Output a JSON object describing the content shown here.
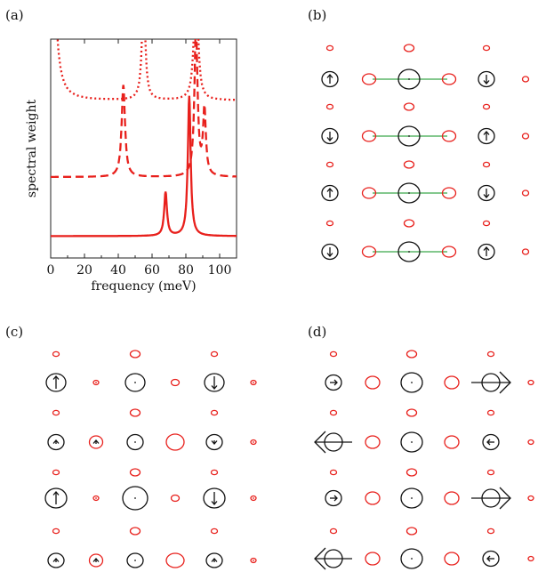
{
  "panels": {
    "a": {
      "label": "(a)"
    },
    "b": {
      "label": "(b)"
    },
    "c": {
      "label": "(c)"
    },
    "d": {
      "label": "(d)"
    }
  },
  "chart_data": {
    "type": "line",
    "title": "",
    "xlabel": "frequency (meV)",
    "ylabel": "spectral weight",
    "xlim": [
      0,
      110
    ],
    "x_ticks": [
      "0",
      "20",
      "40",
      "60",
      "80",
      "100"
    ],
    "y_ticks": [],
    "grid": false,
    "legend": "none",
    "series": [
      {
        "style": "dotted",
        "color": "#e8201c",
        "offset": 0.72,
        "baseline": 0.14,
        "peaks": [
          {
            "x": 0,
            "h": 1.4,
            "w": 2.0
          },
          {
            "x": 55,
            "h": 0.48,
            "w": 1.2
          },
          {
            "x": 86,
            "h": 0.62,
            "w": 1.3
          }
        ]
      },
      {
        "style": "dashed",
        "color": "#e8201c",
        "offset": 0.37,
        "baseline": 0.0,
        "peaks": [
          {
            "x": 43,
            "h": 0.42,
            "w": 1.2
          },
          {
            "x": 86,
            "h": 0.68,
            "w": 1.1
          },
          {
            "x": 91,
            "h": 0.3,
            "w": 1.0
          }
        ]
      },
      {
        "style": "solid",
        "color": "#e8201c",
        "offset": 0.1,
        "baseline": 0.0,
        "peaks": [
          {
            "x": 68,
            "h": 0.2,
            "w": 1.0
          },
          {
            "x": 82,
            "h": 0.64,
            "w": 1.0
          }
        ]
      }
    ]
  },
  "lattice_colors": {
    "cu": "#111111",
    "oxygen": "#e8201c",
    "bond": "#3aa64a"
  }
}
